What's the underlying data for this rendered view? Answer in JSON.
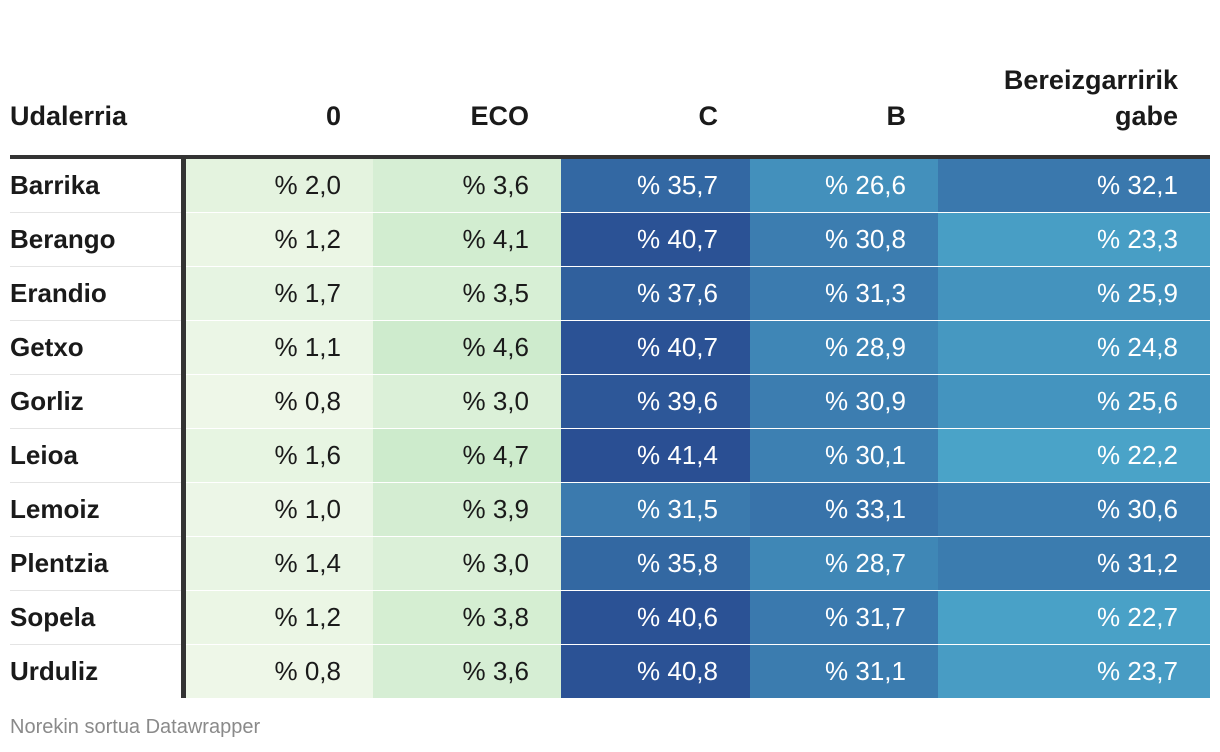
{
  "chart_data": {
    "type": "table",
    "columns": [
      "Udalerria",
      "0",
      "ECO",
      "C",
      "B",
      "Bereizgarririk gabe"
    ],
    "rows": [
      {
        "name": "Barrika",
        "cells": [
          "% 2,0",
          "% 3,6",
          "% 35,7",
          "% 26,6",
          "% 32,1"
        ],
        "values": [
          2.0,
          3.6,
          35.7,
          26.6,
          32.1
        ]
      },
      {
        "name": "Berango",
        "cells": [
          "% 1,2",
          "% 4,1",
          "% 40,7",
          "% 30,8",
          "% 23,3"
        ],
        "values": [
          1.2,
          4.1,
          40.7,
          30.8,
          23.3
        ]
      },
      {
        "name": "Erandio",
        "cells": [
          "% 1,7",
          "% 3,5",
          "% 37,6",
          "% 31,3",
          "% 25,9"
        ],
        "values": [
          1.7,
          3.5,
          37.6,
          31.3,
          25.9
        ]
      },
      {
        "name": "Getxo",
        "cells": [
          "% 1,1",
          "% 4,6",
          "% 40,7",
          "% 28,9",
          "% 24,8"
        ],
        "values": [
          1.1,
          4.6,
          40.7,
          28.9,
          24.8
        ]
      },
      {
        "name": "Gorliz",
        "cells": [
          "% 0,8",
          "% 3,0",
          "% 39,6",
          "% 30,9",
          "% 25,6"
        ],
        "values": [
          0.8,
          3.0,
          39.6,
          30.9,
          25.6
        ]
      },
      {
        "name": "Leioa",
        "cells": [
          "% 1,6",
          "% 4,7",
          "% 41,4",
          "% 30,1",
          "% 22,2"
        ],
        "values": [
          1.6,
          4.7,
          41.4,
          30.1,
          22.2
        ]
      },
      {
        "name": "Lemoiz",
        "cells": [
          "% 1,0",
          "% 3,9",
          "% 31,5",
          "% 33,1",
          "% 30,6"
        ],
        "values": [
          1.0,
          3.9,
          31.5,
          33.1,
          30.6
        ]
      },
      {
        "name": "Plentzia",
        "cells": [
          "% 1,4",
          "% 3,0",
          "% 35,8",
          "% 28,7",
          "% 31,2"
        ],
        "values": [
          1.4,
          3.0,
          35.8,
          28.7,
          31.2
        ]
      },
      {
        "name": "Sopela",
        "cells": [
          "% 1,2",
          "% 3,8",
          "% 40,6",
          "% 31,7",
          "% 22,7"
        ],
        "values": [
          1.2,
          3.8,
          40.6,
          31.7,
          22.7
        ]
      },
      {
        "name": "Urduliz",
        "cells": [
          "% 0,8",
          "% 3,6",
          "% 40,8",
          "% 31,1",
          "% 23,7"
        ],
        "values": [
          0.8,
          3.6,
          40.8,
          31.1,
          23.7
        ]
      }
    ],
    "heatmap_colors": {
      "low_columns": [
        "0",
        "ECO"
      ],
      "low_scale": [
        "#eef7e8",
        "#cdebcc"
      ],
      "high_scale": [
        "#4aa3c8",
        "#2a4f93"
      ],
      "low_text": "#1a1a1a",
      "high_text": "#ffffff"
    }
  },
  "footer": "Norekin sortua Datawrapper"
}
